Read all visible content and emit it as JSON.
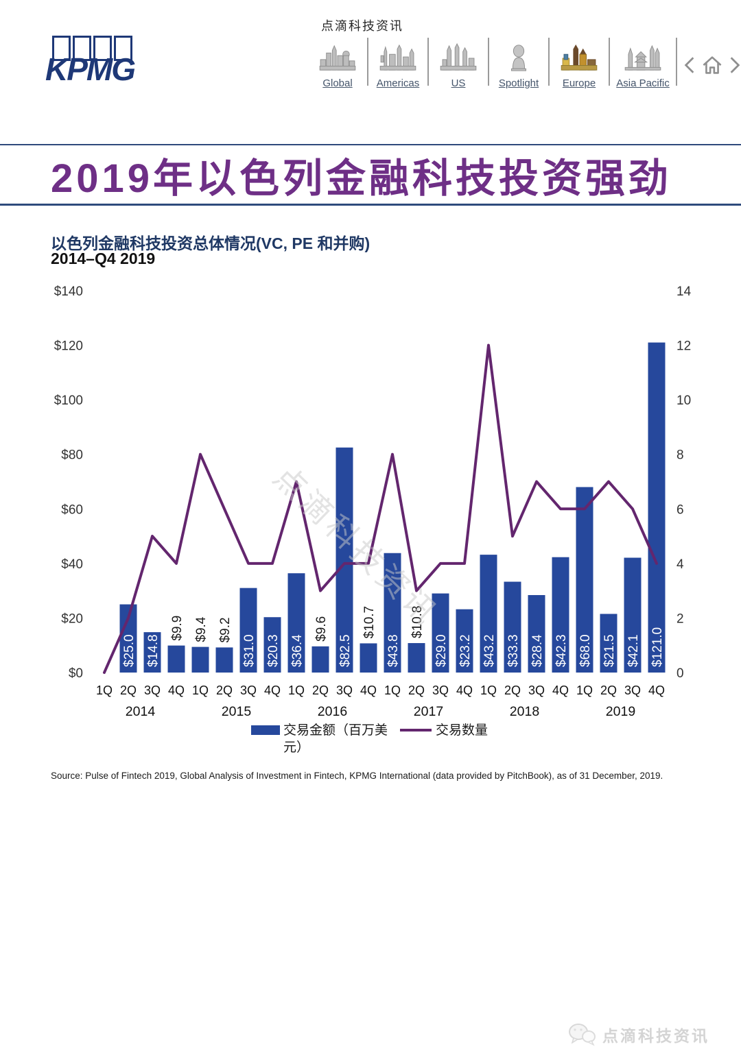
{
  "header": {
    "brand": "KPMG",
    "site_title": "点滴科技资讯",
    "nav": {
      "items": [
        {
          "label": "Global",
          "active": false
        },
        {
          "label": "Americas",
          "active": false
        },
        {
          "label": "US",
          "active": false
        },
        {
          "label": "Spotlight",
          "active": false
        },
        {
          "label": "Europe",
          "active": true
        },
        {
          "label": "Asia Pacific",
          "active": false
        }
      ]
    }
  },
  "page": {
    "title": "2019年以色列金融科技投资强劲",
    "source": "Source: Pulse of Fintech 2019, Global Analysis of Investment in Fintech, KPMG International (data provided by PitchBook), as of 31 December, 2019.",
    "watermark": "点滴科技资讯"
  },
  "chart_data": {
    "type": "combo-bar-line",
    "title": "以色列金融科技投资总体情况(VC, PE 和并购)",
    "subtitle": "2014–Q4 2019",
    "quarters": [
      "1Q",
      "2Q",
      "3Q",
      "4Q"
    ],
    "years": [
      "2014",
      "2015",
      "2016",
      "2017",
      "2018",
      "2019"
    ],
    "categories": [
      "1Q 2014",
      "2Q 2014",
      "3Q 2014",
      "4Q 2014",
      "1Q 2015",
      "2Q 2015",
      "3Q 2015",
      "4Q 2015",
      "1Q 2016",
      "2Q 2016",
      "3Q 2016",
      "4Q 2016",
      "1Q 2017",
      "2Q 2017",
      "3Q 2017",
      "4Q 2017",
      "1Q 2018",
      "2Q 2018",
      "3Q 2018",
      "4Q 2018",
      "1Q 2019",
      "2Q 2019",
      "3Q 2019",
      "4Q 2019"
    ],
    "series": [
      {
        "name": "交易金额（百万美元）",
        "type": "bar",
        "values": [
          null,
          25.0,
          14.8,
          9.9,
          9.4,
          9.2,
          31.0,
          20.3,
          36.4,
          9.6,
          82.5,
          10.7,
          43.8,
          10.8,
          29.0,
          23.2,
          43.2,
          33.3,
          28.4,
          42.3,
          68.0,
          21.5,
          42.1,
          121.0
        ],
        "labels": [
          "",
          "$25.0",
          "$14.8",
          "$9.9",
          "$9.4",
          "$9.2",
          "$31.0",
          "$20.3",
          "$36.4",
          "$9.6",
          "$82.5",
          "$10.7",
          "$43.8",
          "$10.8",
          "$29.0",
          "$23.2",
          "$43.2",
          "$33.3",
          "$28.4",
          "$42.3",
          "$68.0",
          "$21.5",
          "$42.1",
          "$121.0"
        ]
      },
      {
        "name": "交易数量",
        "type": "line",
        "values": [
          0,
          2,
          5,
          4,
          8,
          6,
          4,
          4,
          7,
          3,
          4,
          4,
          8,
          3,
          4,
          4,
          12,
          5,
          7,
          6,
          6,
          7,
          6,
          4
        ]
      }
    ],
    "left_axis": {
      "ticks": [
        "$0",
        "$20",
        "$40",
        "$60",
        "$80",
        "$100",
        "$120",
        "$140"
      ],
      "min": 0,
      "max": 140
    },
    "right_axis": {
      "ticks": [
        "0",
        "2",
        "4",
        "6",
        "8",
        "10",
        "12",
        "14"
      ],
      "min": 0,
      "max": 14
    },
    "legend_position": "bottom",
    "grid": false
  },
  "colors": {
    "bar": "#26489C",
    "line": "#63266E",
    "title_purple": "#6E2F86",
    "navy": "#1F3864",
    "band_line": "#2E4A7C",
    "nav_label": "#44546A",
    "bar_label_inside": "#FFFFFF",
    "bar_label_outside": "#1A1A1A"
  }
}
